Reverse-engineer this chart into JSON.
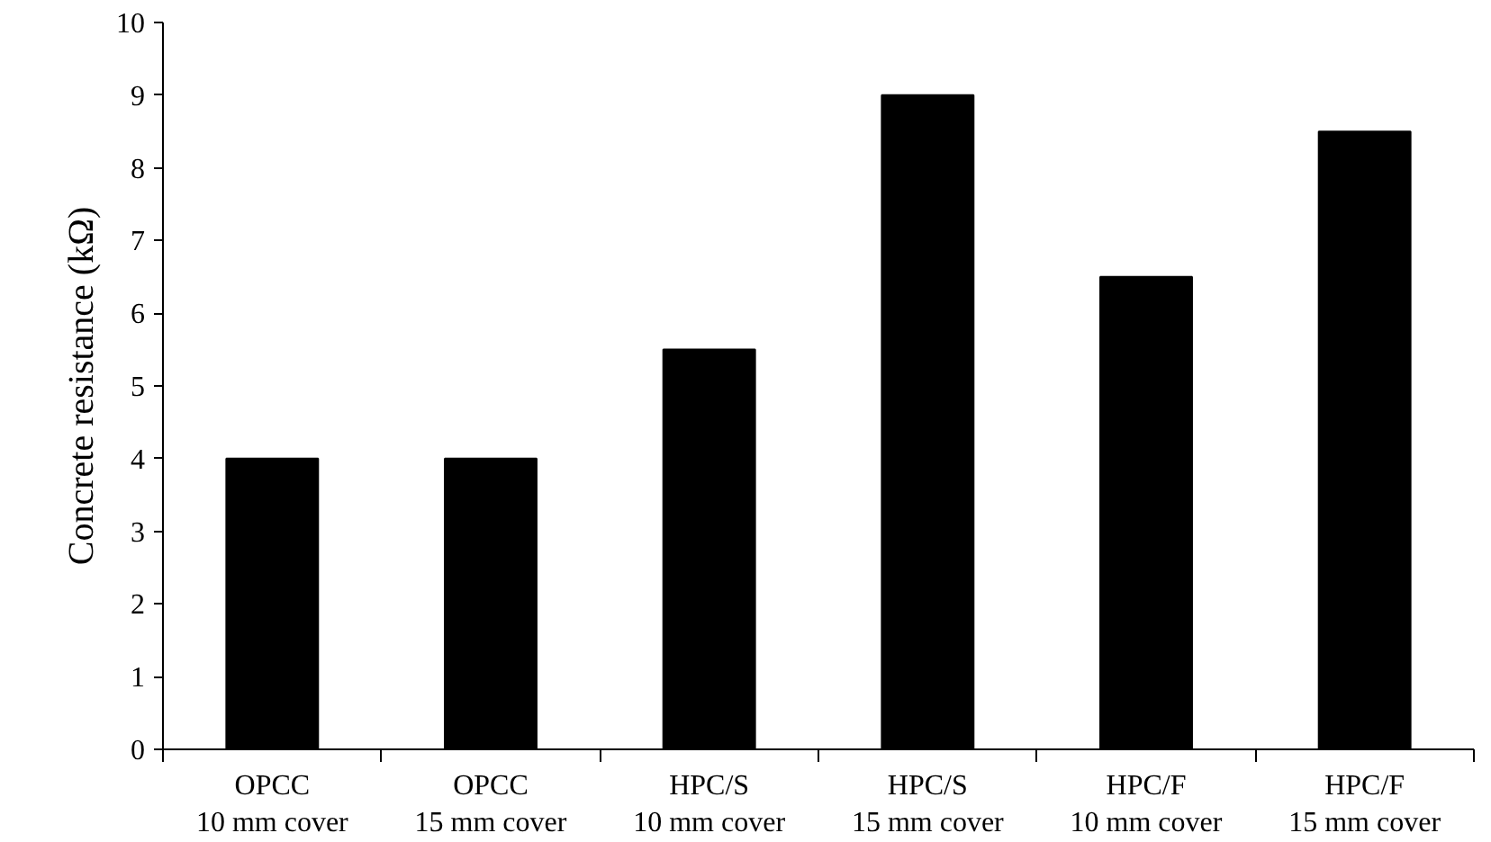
{
  "chart_data": {
    "type": "bar",
    "ylabel": "Concrete resistance (kΩ)",
    "categories": [
      "OPCC\n10 mm cover",
      "OPCC\n15 mm cover",
      "HPC/S\n10 mm cover",
      "HPC/S\n15 mm cover",
      "HPC/F\n10 mm cover",
      "HPC/F\n15 mm cover"
    ],
    "values": [
      4.0,
      4.0,
      5.5,
      9.0,
      6.5,
      8.5
    ],
    "color": "#000000",
    "ylim": [
      0,
      10
    ],
    "yticks": [
      0,
      1,
      2,
      3,
      4,
      5,
      6,
      7,
      8,
      9,
      10
    ],
    "grid": false
  }
}
